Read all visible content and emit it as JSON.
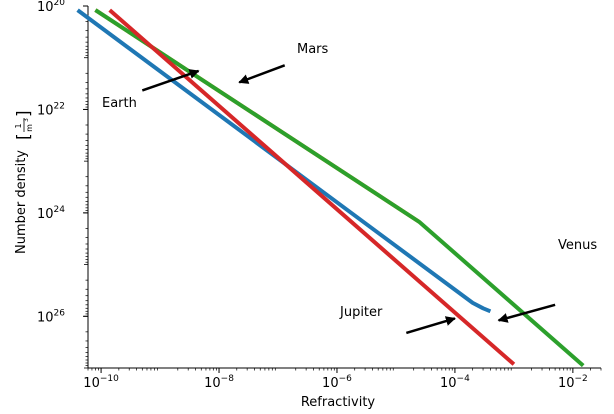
{
  "chart_data": {
    "type": "line",
    "title": "",
    "xlabel": "Refractivity",
    "ylabel": "Number density",
    "ylabel_unit": {
      "numerator": "1",
      "denominator": "m",
      "denominator_exponent": "3"
    },
    "x_scale": "log",
    "y_scale": "log",
    "y_inverted": true,
    "xlim": [
      6e-11,
      0.03
    ],
    "ylim": [
      1e+20,
      1e+27
    ],
    "grid": false,
    "x_ticks": [
      {
        "value": 1e-10,
        "base": "10",
        "exp": "−10"
      },
      {
        "value": 1e-08,
        "base": "10",
        "exp": "−8"
      },
      {
        "value": 1e-06,
        "base": "10",
        "exp": "−6"
      },
      {
        "value": 0.0001,
        "base": "10",
        "exp": "−4"
      },
      {
        "value": 0.01,
        "base": "10",
        "exp": "−2"
      }
    ],
    "y_ticks": [
      {
        "value": 1e+20,
        "base": "10",
        "exp": "20"
      },
      {
        "value": 1e+22,
        "base": "10",
        "exp": "22"
      },
      {
        "value": 1e+24,
        "base": "10",
        "exp": "24"
      },
      {
        "value": 1e+26,
        "base": "10",
        "exp": "26"
      }
    ],
    "series": [
      {
        "color": "#ff7f0e",
        "points": [
          [
            8e-11,
            1.2e+20
          ],
          [
            2.5e-05,
            1.5e+24
          ]
        ]
      },
      {
        "color": "#2ca02c",
        "points": [
          [
            8e-11,
            1.2e+20
          ],
          [
            2.5e-05,
            1.5e+24
          ],
          [
            0.015,
            9e+26
          ]
        ]
      },
      {
        "color": "#1f77b4",
        "points": [
          [
            4e-11,
            1.2e+20
          ],
          [
            0.0002,
            5.5e+25
          ],
          [
            0.0003,
            7e+25
          ],
          [
            0.0004,
            8e+25
          ]
        ]
      },
      {
        "color": "#d62728",
        "points": [
          [
            1.4e-10,
            1.2e+20
          ],
          [
            0.001,
            8.5e+26
          ]
        ]
      }
    ],
    "annotations": [
      {
        "text": "Mars",
        "arrow_from": [
          1.3e-07,
          1.4e+21
        ],
        "arrow_to": [
          2.2e-08,
          3e+21
        ]
      },
      {
        "text": "Earth",
        "arrow_from": [
          5e-10,
          4.3e+21
        ],
        "arrow_to": [
          4.5e-09,
          1.8e+21
        ]
      },
      {
        "text": "Venus",
        "arrow_from": [
          0.005,
          6e+25
        ],
        "arrow_to": [
          0.00055,
          1.2e+26
        ]
      },
      {
        "text": "Jupiter",
        "arrow_from": [
          1.5e-05,
          2.1e+26
        ],
        "arrow_to": [
          0.0001,
          1.1e+26
        ]
      }
    ]
  }
}
